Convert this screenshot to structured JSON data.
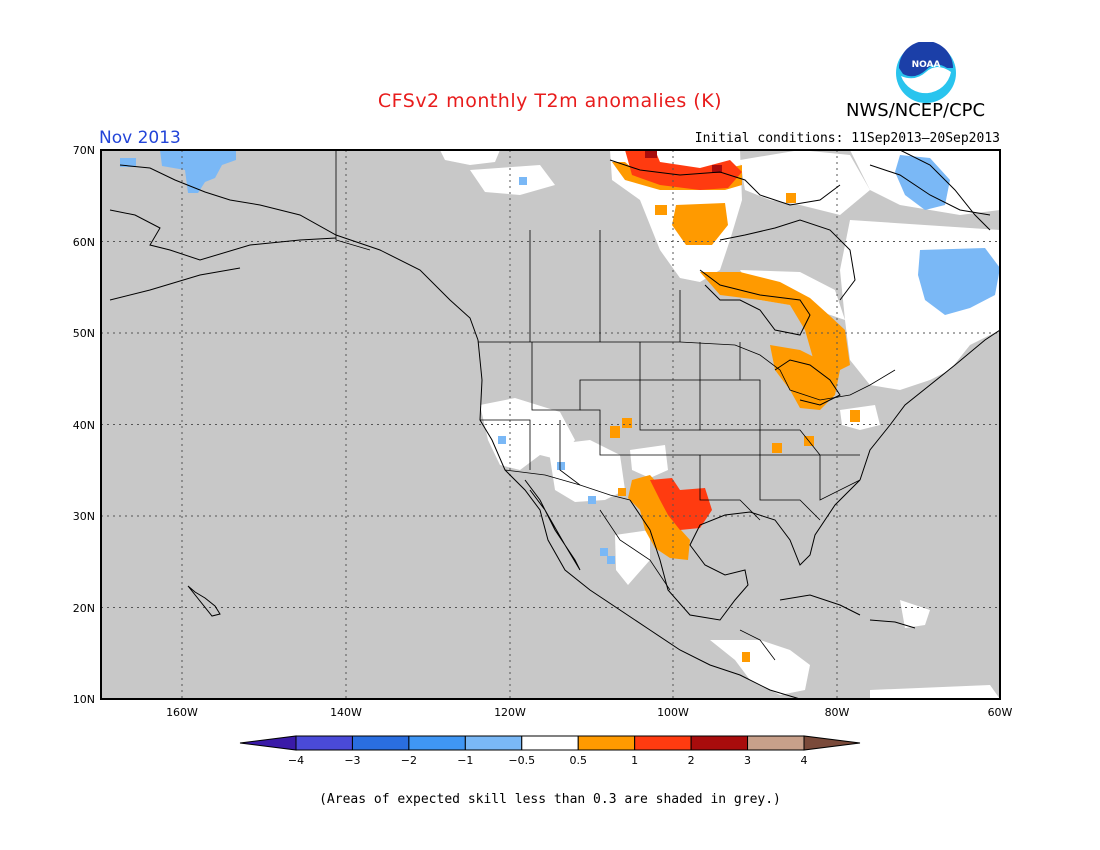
{
  "header": {
    "title": "CFSv2 monthly T2m anomalies (K)",
    "month": "Nov 2013",
    "initial_conditions": "Initial conditions: 11Sep2013–20Sep2013",
    "agency": "NWS/NCEP/CPC",
    "logo_text": "NOAA"
  },
  "axes": {
    "lat_labels": [
      "70N",
      "60N",
      "50N",
      "40N",
      "30N",
      "20N",
      "10N"
    ],
    "lon_labels": [
      "160W",
      "140W",
      "120W",
      "100W",
      "80W",
      "60W"
    ]
  },
  "legend": {
    "ticks": [
      "−4",
      "−3",
      "−2",
      "−1",
      "−0.5",
      "0.5",
      "1",
      "2",
      "3",
      "4"
    ],
    "colors": [
      "#3a1aa8",
      "#4a4ad8",
      "#2a6ee0",
      "#3f96f4",
      "#7ab8f6",
      "#ffffff",
      "#ff9a00",
      "#ff3b10",
      "#a80c0c",
      "#c8a08a",
      "#7a4a3a"
    ]
  },
  "colors": {
    "grey_skill_mask": "#c8c8c8",
    "title": "#e81c1c",
    "month": "#2244d8"
  },
  "footer": {
    "note": "(Areas of expected skill less than 0.3 are shaded in grey.)"
  }
}
